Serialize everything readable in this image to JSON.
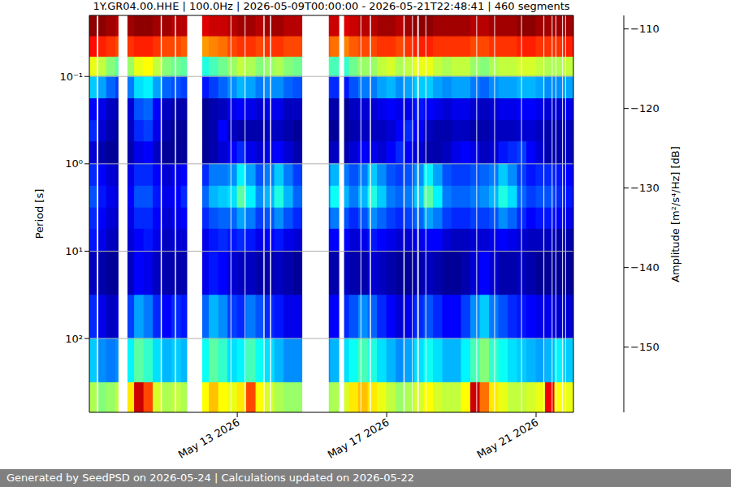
{
  "chart_data": {
    "type": "heatmap",
    "title": "1Y.GR04.00.HHE | 100.0Hz | 2026-05-09T00:00:00 - 2026-05-21T22:48:41 | 460 segments",
    "ylabel": "Period [s]",
    "footer": "Generated by SeedPSD on 2026-05-24 | Calculations updated on 2026-05-22",
    "log": "y",
    "grid": true,
    "color": "jet",
    "xlim": [
      9.04,
      22.0
    ],
    "xticks": [
      {
        "value": 13,
        "label": "May 13 2026"
      },
      {
        "value": 17,
        "label": "May 17 2026"
      },
      {
        "value": 21,
        "label": "May 21 2026"
      }
    ],
    "ylim": [
      0.02,
      700
    ],
    "yticks": [
      {
        "value": 0.1,
        "label": "10⁻¹"
      },
      {
        "value": 1,
        "label": "10⁰"
      },
      {
        "value": 10,
        "label": "10¹"
      },
      {
        "value": 100,
        "label": "10²"
      }
    ],
    "colorbar": {
      "label": "Amplitude [m²/s⁴/Hz] [dB]",
      "range": [
        -158.2,
        -108.3
      ],
      "ticks": [
        {
          "value": -110,
          "label": "−110"
        },
        {
          "value": -120,
          "label": "−120"
        },
        {
          "value": -130,
          "label": "−130"
        },
        {
          "value": -140,
          "label": "−140"
        },
        {
          "value": -150,
          "label": "−150"
        }
      ]
    },
    "x_edges": [
      9,
      9.25,
      9.5,
      9.75,
      10,
      10.25,
      10.5,
      10.75,
      11,
      11.25,
      11.5,
      11.75,
      12,
      12.25,
      12.5,
      12.75,
      13,
      13.25,
      13.5,
      13.75,
      14,
      14.25,
      14.5,
      14.75,
      15,
      15.25,
      15.5,
      15.75,
      16,
      16.25,
      16.5,
      16.75,
      17,
      17.25,
      17.5,
      17.75,
      18,
      18.25,
      18.5,
      18.75,
      19,
      19.25,
      19.5,
      19.75,
      20,
      20.25,
      20.5,
      20.75,
      21,
      21.25,
      21.5,
      21.75,
      22
    ],
    "period_edges": [
      0.02,
      0.035,
      0.06,
      0.1,
      0.18,
      0.32,
      0.56,
      1.0,
      1.8,
      3.2,
      5.6,
      10,
      32,
      100,
      320,
      700
    ],
    "values": [
      [
        -109,
        -109,
        -110,
        -111,
        -110,
        -109,
        -109,
        -110,
        -110,
        -111,
        -111,
        -112,
        -113,
        -112,
        -112,
        -111,
        -110,
        -110,
        -111,
        -110,
        -110,
        -111,
        -111,
        null,
        null,
        -112,
        -112,
        -113,
        -112,
        -111,
        -111,
        -110,
        -110,
        -111,
        -110,
        -109,
        -109,
        -110,
        -110,
        -110,
        -110,
        -111,
        -111,
        -110,
        -110,
        -110,
        -109,
        -109,
        -110,
        -110,
        -110,
        -110
      ],
      [
        -115,
        -116,
        -117,
        -118,
        -117,
        -116,
        -116,
        -117,
        -118,
        -118,
        -119,
        -120,
        -122,
        -121,
        -120,
        -118,
        -117,
        -117,
        -118,
        -117,
        -117,
        -118,
        -118,
        null,
        null,
        -119,
        -120,
        -121,
        -119,
        -118,
        -118,
        -117,
        -117,
        -118,
        -117,
        -116,
        -116,
        -117,
        -117,
        -117,
        -117,
        -118,
        -118,
        -117,
        -117,
        -117,
        -116,
        -116,
        -117,
        -117,
        -117,
        -116
      ],
      [
        -128,
        -130,
        -133,
        -135,
        -132,
        -128,
        -127,
        -130,
        -133,
        -134,
        -135,
        -136,
        -138,
        -136,
        -134,
        -132,
        -130,
        -131,
        -133,
        -132,
        -131,
        -133,
        -134,
        null,
        null,
        -135,
        -136,
        -137,
        -134,
        -132,
        -132,
        -130,
        -129,
        -131,
        -130,
        -128,
        -128,
        -130,
        -131,
        -130,
        -130,
        -132,
        -133,
        -131,
        -130,
        -130,
        -129,
        -129,
        -130,
        -131,
        -131,
        -130
      ],
      [
        -142,
        -144,
        -147,
        -149,
        -146,
        -141,
        -140,
        -144,
        -147,
        -148,
        -149,
        -150,
        -151,
        -149,
        -147,
        -145,
        -143,
        -144,
        -146,
        -145,
        -145,
        -147,
        -148,
        null,
        null,
        -149,
        -150,
        -151,
        -148,
        -146,
        -146,
        -144,
        -143,
        -145,
        -144,
        -142,
        -142,
        -144,
        -145,
        -144,
        -144,
        -146,
        -147,
        -145,
        -144,
        -144,
        -143,
        -143,
        -144,
        -145,
        -145,
        -144
      ],
      [
        -152,
        -153,
        -155,
        -156,
        -154,
        -148,
        -147,
        -152,
        -155,
        -156,
        -156,
        -156,
        -157,
        -156,
        -155,
        -153,
        -152,
        -153,
        -154,
        -153,
        -153,
        -155,
        -155,
        null,
        null,
        -156,
        -156,
        -157,
        -155,
        -154,
        -154,
        -153,
        -152,
        -153,
        -153,
        -151,
        -152,
        -153,
        -154,
        -153,
        -153,
        -154,
        -155,
        -154,
        -153,
        -153,
        -152,
        -152,
        -153,
        -154,
        -154,
        -153
      ],
      [
        -150,
        -154,
        -156,
        -157,
        -155,
        -150,
        -149,
        -153,
        -156,
        -157,
        -157,
        -157,
        -157,
        -156,
        -152,
        -155,
        -156,
        -156,
        -156,
        -155,
        -155,
        -156,
        -157,
        null,
        null,
        -157,
        -157,
        -157,
        -156,
        -155,
        -155,
        -155,
        -154,
        -152,
        -150,
        -152,
        -155,
        -156,
        -156,
        -155,
        -155,
        -156,
        -156,
        -155,
        -155,
        -155,
        -154,
        -154,
        -155,
        -156,
        -156,
        -155
      ],
      [
        -154,
        -156,
        -157,
        -157,
        -156,
        -153,
        -152,
        -155,
        -157,
        -157,
        -157,
        -157,
        -157,
        -156,
        -154,
        -152,
        -150,
        -153,
        -154,
        -153,
        -152,
        -154,
        -156,
        null,
        null,
        -156,
        -155,
        -156,
        -154,
        -152,
        -153,
        -154,
        -152,
        -150,
        -152,
        -154,
        -156,
        -156,
        -155,
        -153,
        -152,
        -153,
        -155,
        -154,
        -151,
        -150,
        -149,
        -152,
        -154,
        -156,
        -156,
        -155
      ],
      [
        -150,
        -152,
        -154,
        -155,
        -153,
        -150,
        -150,
        -152,
        -154,
        -153,
        -152,
        -151,
        -150,
        -146,
        -146,
        -145,
        -140,
        -144,
        -148,
        -146,
        -142,
        -146,
        -149,
        null,
        null,
        -147,
        -143,
        -146,
        -148,
        -146,
        -142,
        -145,
        -148,
        -149,
        -148,
        -145,
        -140,
        -144,
        -148,
        -149,
        -149,
        -148,
        -147,
        -146,
        -142,
        -145,
        -149,
        -151,
        -150,
        -150,
        -151,
        -152
      ],
      [
        -148,
        -151,
        -153,
        -154,
        -152,
        -148,
        -148,
        -151,
        -153,
        -152,
        -150,
        -149,
        -147,
        -143,
        -142,
        -141,
        -135,
        -140,
        -145,
        -143,
        -138,
        -143,
        -147,
        null,
        null,
        -145,
        -139,
        -143,
        -146,
        -143,
        -138,
        -142,
        -146,
        -147,
        -146,
        -142,
        -135,
        -140,
        -146,
        -147,
        -147,
        -146,
        -145,
        -143,
        -138,
        -141,
        -147,
        -149,
        -148,
        -148,
        -150,
        -151
      ],
      [
        -150,
        -152,
        -154,
        -155,
        -153,
        -150,
        -150,
        -152,
        -154,
        -153,
        -152,
        -151,
        -150,
        -148,
        -147,
        -147,
        -144,
        -146,
        -149,
        -148,
        -145,
        -148,
        -150,
        null,
        null,
        -149,
        -146,
        -148,
        -150,
        -148,
        -145,
        -147,
        -149,
        -150,
        -149,
        -147,
        -144,
        -146,
        -149,
        -150,
        -150,
        -149,
        -149,
        -148,
        -145,
        -147,
        -150,
        -152,
        -151,
        -151,
        -152,
        -153
      ],
      [
        -151,
        -153,
        -155,
        -156,
        -154,
        -152,
        -151,
        -153,
        -155,
        -154,
        -154,
        -153,
        -153,
        -151,
        -150,
        -151,
        -150,
        -151,
        -153,
        -152,
        -151,
        -153,
        -154,
        null,
        null,
        -153,
        -152,
        -152,
        -154,
        -153,
        -151,
        -152,
        -153,
        -154,
        -154,
        -153,
        -152,
        -152,
        -154,
        -155,
        -155,
        -154,
        -154,
        -153,
        -152,
        -153,
        -154,
        -155,
        -155,
        -155,
        -156,
        -156
      ],
      [
        -155,
        -156,
        -157,
        -157,
        -155,
        -152,
        -153,
        -155,
        -156,
        -156,
        -156,
        -155,
        -153,
        -151,
        -152,
        -154,
        -155,
        -155,
        -156,
        -156,
        -155,
        -156,
        -157,
        null,
        null,
        -157,
        -156,
        -155,
        -156,
        -156,
        -154,
        -155,
        -156,
        -157,
        -157,
        -156,
        -155,
        -156,
        -157,
        -157,
        -156,
        -154,
        -152,
        -154,
        -156,
        -156,
        -155,
        -156,
        -157,
        -157,
        -157,
        -157
      ],
      [
        -150,
        -153,
        -155,
        -154,
        -149,
        -144,
        -146,
        -150,
        -152,
        -150,
        -151,
        -150,
        -147,
        -143,
        -145,
        -149,
        -150,
        -146,
        -148,
        -150,
        -151,
        -153,
        -153,
        null,
        null,
        -153,
        -152,
        -150,
        -148,
        -145,
        -147,
        -150,
        -152,
        -154,
        -153,
        -150,
        -148,
        -150,
        -152,
        -152,
        -149,
        -145,
        -142,
        -146,
        -148,
        -150,
        -151,
        -152,
        -153,
        -153,
        -154,
        -154
      ],
      [
        -142,
        -145,
        -146,
        -145,
        -140,
        -135,
        -137,
        -141,
        -143,
        -142,
        -143,
        -142,
        -139,
        -135,
        -137,
        -141,
        -140,
        -136,
        -139,
        -141,
        -143,
        -145,
        -145,
        null,
        null,
        -145,
        -143,
        -141,
        -139,
        -136,
        -138,
        -141,
        -143,
        -145,
        -144,
        -141,
        -139,
        -141,
        -143,
        -143,
        -140,
        -136,
        -133,
        -137,
        -139,
        -141,
        -142,
        -143,
        -144,
        -143,
        -140,
        -142
      ],
      [
        -131,
        -133,
        -132,
        -130,
        -126,
        -112,
        -118,
        -129,
        -131,
        -130,
        -131,
        -130,
        -127,
        -124,
        -127,
        -128,
        -126,
        -118,
        -127,
        -129,
        -131,
        -132,
        -132,
        null,
        null,
        -132,
        -131,
        -129,
        -126,
        -124,
        -126,
        -128,
        -130,
        -132,
        -131,
        -129,
        -127,
        -129,
        -130,
        -130,
        -127,
        -112,
        -120,
        -126,
        -128,
        -130,
        -130,
        -129,
        -128,
        -114,
        -127,
        -128
      ]
    ],
    "gaps": [
      [
        9.24,
        9.28
      ],
      [
        9.82,
        10.06
      ],
      [
        10.95,
        10.98
      ],
      [
        11.33,
        11.36
      ],
      [
        11.66,
        12.06
      ],
      [
        12.82,
        12.84
      ],
      [
        13.2,
        13.22
      ],
      [
        13.7,
        13.73
      ],
      [
        13.88,
        13.91
      ],
      [
        14.74,
        15.45
      ],
      [
        15.73,
        15.86
      ],
      [
        16.3,
        16.32
      ],
      [
        16.55,
        16.58
      ],
      [
        17.45,
        17.48
      ],
      [
        17.68,
        17.7
      ],
      [
        17.82,
        17.86
      ],
      [
        18.04,
        18.06
      ],
      [
        19.4,
        19.42
      ],
      [
        19.88,
        19.9
      ],
      [
        20.6,
        20.62
      ],
      [
        21.2,
        21.22
      ],
      [
        21.42,
        21.44
      ],
      [
        21.52,
        21.54
      ],
      [
        21.7,
        21.72
      ],
      [
        21.78,
        21.8
      ]
    ]
  }
}
